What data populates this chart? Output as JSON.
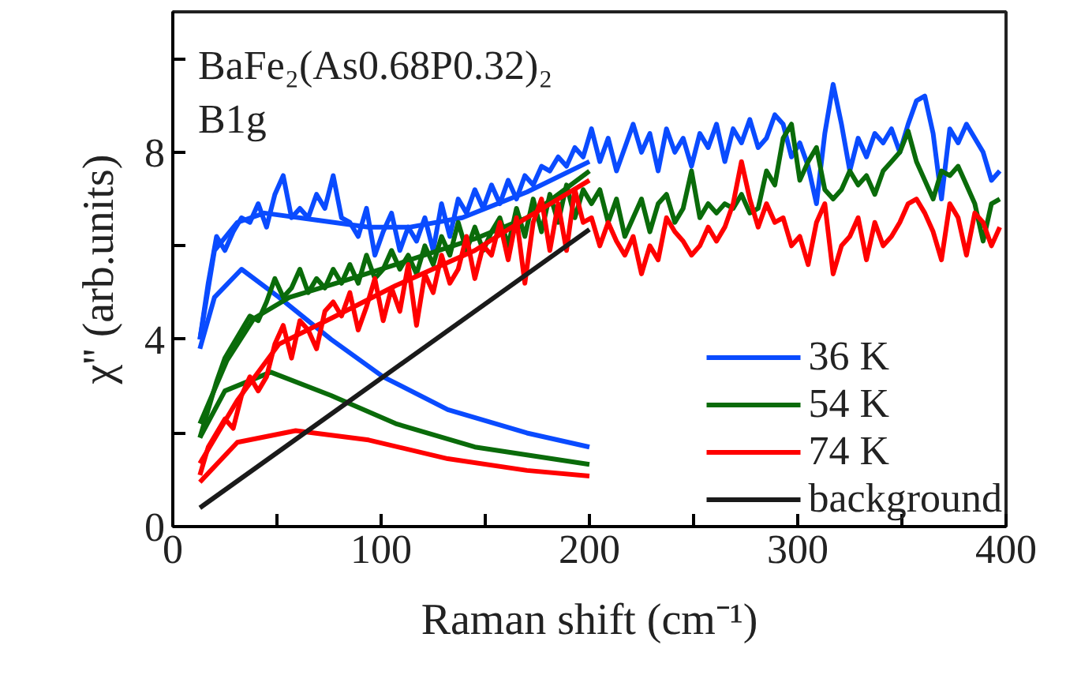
{
  "chart_data": {
    "type": "line",
    "annotations": [
      "BaFe₂(As0.68P0.32)₂",
      "B1g"
    ],
    "xlabel": "Raman shift (cm⁻¹)",
    "ylabel": "χ'' (arb.units)",
    "xlim": [
      0,
      400
    ],
    "ylim": [
      0,
      11
    ],
    "xticks": [
      0,
      {
        "value": 50,
        "label": null
      },
      100,
      {
        "value": 150,
        "label": null
      },
      200,
      {
        "value": 250,
        "label": null
      },
      300,
      {
        "value": 350,
        "label": null
      },
      400
    ],
    "yticks": [
      0,
      {
        "value": 2,
        "label": null
      },
      4,
      {
        "value": 6,
        "label": null
      },
      8,
      {
        "value": 10,
        "label": null
      }
    ],
    "grid": false,
    "legend": "bottom right",
    "marker": "none",
    "line_style": "solid",
    "x": [
      13,
      17,
      21,
      25,
      29,
      33,
      37,
      41,
      45,
      49,
      53,
      57,
      61,
      65,
      69,
      73,
      77,
      81,
      85,
      89,
      93,
      97,
      101,
      105,
      109,
      113,
      117,
      121,
      125,
      129,
      133,
      137,
      141,
      145,
      149,
      153,
      157,
      161,
      165,
      169,
      173,
      177,
      181,
      185,
      189,
      193,
      197,
      201,
      205,
      209,
      213,
      217,
      221,
      225,
      229,
      233,
      237,
      241,
      245,
      249,
      253,
      257,
      261,
      265,
      269,
      273,
      277,
      281,
      285,
      289,
      293,
      297,
      301,
      305,
      309,
      313,
      317,
      321,
      325,
      329,
      333,
      337,
      341,
      345,
      349,
      353,
      357,
      361,
      365,
      369,
      373,
      377,
      381,
      385,
      389,
      393,
      397
    ],
    "series": [
      {
        "name": "36 K",
        "color": "#0a4bff",
        "values": [
          4.0,
          5.2,
          6.2,
          5.9,
          6.3,
          6.6,
          6.5,
          6.9,
          6.4,
          7.1,
          7.5,
          6.6,
          6.8,
          6.6,
          7.1,
          6.8,
          7.5,
          6.6,
          6.5,
          6.2,
          6.8,
          5.8,
          6.3,
          6.7,
          5.9,
          6.4,
          6.1,
          6.6,
          5.9,
          6.9,
          6.2,
          7.0,
          6.7,
          7.2,
          6.8,
          7.3,
          6.9,
          7.4,
          7.0,
          7.5,
          7.3,
          7.7,
          7.6,
          7.9,
          7.7,
          8.1,
          7.9,
          8.5,
          7.8,
          8.3,
          7.6,
          8.1,
          8.6,
          8.0,
          8.4,
          7.6,
          8.5,
          8.0,
          8.3,
          7.7,
          8.4,
          8.1,
          8.6,
          7.8,
          8.5,
          8.2,
          8.7,
          8.1,
          8.3,
          8.8,
          8.6,
          7.9,
          8.2,
          7.7,
          6.9,
          8.4,
          9.45,
          8.6,
          7.6,
          8.3,
          7.9,
          8.4,
          8.2,
          8.5,
          8.0,
          8.6,
          9.1,
          9.2,
          8.4,
          7.0,
          8.5,
          8.2,
          8.6,
          8.3,
          8.0,
          7.4,
          7.6
        ]
      },
      {
        "color": "#0a4bff",
        "x": [
          13,
          20,
          31,
          44,
          69,
          94,
          114,
          139,
          170,
          200
        ],
        "values": [
          4.0,
          5.9,
          6.5,
          6.7,
          6.55,
          6.4,
          6.4,
          6.6,
          7.15,
          7.8
        ]
      },
      {
        "color": "#0a4bff",
        "x": [
          13,
          20,
          33,
          51,
          76,
          101,
          132,
          170,
          200
        ],
        "values": [
          3.8,
          4.9,
          5.5,
          4.9,
          4.0,
          3.2,
          2.5,
          2.0,
          1.7
        ]
      },
      {
        "name": "54 K",
        "color": "#0a6b0a",
        "values": [
          1.9,
          2.5,
          3.1,
          3.6,
          3.9,
          4.2,
          4.5,
          4.4,
          4.8,
          5.3,
          4.9,
          5.1,
          5.5,
          5.0,
          5.3,
          5.1,
          5.5,
          5.2,
          5.6,
          5.2,
          5.8,
          5.3,
          5.5,
          5.9,
          5.5,
          5.8,
          5.4,
          6.0,
          5.6,
          6.2,
          5.8,
          6.5,
          5.9,
          6.4,
          5.9,
          6.3,
          6.6,
          6.0,
          6.8,
          6.2,
          7.0,
          6.3,
          7.1,
          6.5,
          7.3,
          6.6,
          7.2,
          6.9,
          7.2,
          6.5,
          7.0,
          6.2,
          6.6,
          7.0,
          6.3,
          6.9,
          7.1,
          6.5,
          6.8,
          7.6,
          6.6,
          6.9,
          6.7,
          6.9,
          6.8,
          7.1,
          6.7,
          6.8,
          7.6,
          7.3,
          8.3,
          8.6,
          7.4,
          7.8,
          8.1,
          7.2,
          7.0,
          7.2,
          7.6,
          7.3,
          7.5,
          7.1,
          7.6,
          7.8,
          8.0,
          8.45,
          7.8,
          7.4,
          7.0,
          7.6,
          7.5,
          7.7,
          7.3,
          6.9,
          6.1,
          6.9,
          7.0
        ]
      },
      {
        "color": "#0a6b0a",
        "x": [
          13,
          26,
          39,
          56,
          82,
          107,
          145,
          170,
          200
        ],
        "values": [
          2.2,
          3.55,
          4.45,
          4.9,
          5.25,
          5.6,
          6.15,
          6.6,
          7.6
        ]
      },
      {
        "color": "#0a6b0a",
        "x": [
          13,
          25,
          47,
          76,
          107,
          145,
          200
        ],
        "values": [
          1.9,
          2.9,
          3.3,
          2.8,
          2.2,
          1.7,
          1.33
        ]
      },
      {
        "name": "74 K",
        "color": "#ff0000",
        "values": [
          1.1,
          1.7,
          2.0,
          2.3,
          2.1,
          2.8,
          3.2,
          2.9,
          3.2,
          3.9,
          4.3,
          3.6,
          4.4,
          4.2,
          3.8,
          4.6,
          4.8,
          4.5,
          5.0,
          4.2,
          4.7,
          5.3,
          4.4,
          5.1,
          4.6,
          5.6,
          4.3,
          5.4,
          5.0,
          5.8,
          5.2,
          5.5,
          6.2,
          5.3,
          6.0,
          5.8,
          6.5,
          5.7,
          6.6,
          5.2,
          6.5,
          7.0,
          5.9,
          6.9,
          5.9,
          7.2,
          6.5,
          6.6,
          6.0,
          6.5,
          6.1,
          5.8,
          6.2,
          5.4,
          6.0,
          5.7,
          6.6,
          6.3,
          6.1,
          5.8,
          6.0,
          6.4,
          6.1,
          6.4,
          6.9,
          7.8,
          7.0,
          6.4,
          6.9,
          6.5,
          6.6,
          6.0,
          6.2,
          5.6,
          6.5,
          6.9,
          5.4,
          6.0,
          6.2,
          6.6,
          5.7,
          6.5,
          6.0,
          6.2,
          6.5,
          6.9,
          7.0,
          6.7,
          6.3,
          5.7,
          6.9,
          6.6,
          5.8,
          6.7,
          6.5,
          6.0,
          6.4
        ]
      },
      {
        "color": "#ff0000",
        "x": [
          13,
          31,
          51,
          76,
          107,
          145,
          170,
          200
        ],
        "values": [
          1.35,
          2.7,
          3.9,
          4.45,
          5.15,
          5.9,
          6.6,
          7.4
        ]
      },
      {
        "color": "#ff0000",
        "x": [
          13,
          31,
          59,
          94,
          132,
          170,
          200
        ],
        "values": [
          0.95,
          1.8,
          2.05,
          1.85,
          1.45,
          1.2,
          1.08
        ]
      },
      {
        "name": "background",
        "color": "#1a1a1a",
        "x": [
          13,
          200
        ],
        "values": [
          0.4,
          6.35
        ]
      }
    ]
  }
}
